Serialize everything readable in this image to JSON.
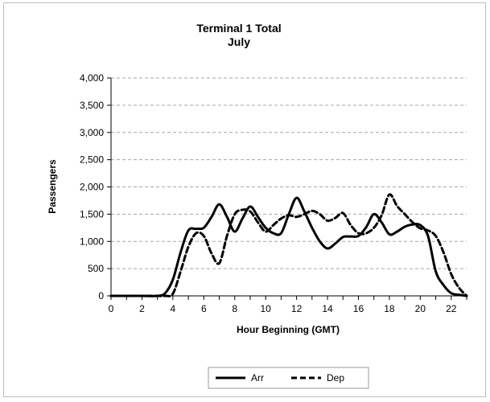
{
  "chart_data": {
    "type": "line",
    "title": "Terminal 1 Total",
    "subtitle": "July",
    "xlabel": "Hour Beginning (GMT)",
    "ylabel": "Passengers",
    "xlim": [
      0,
      23
    ],
    "ylim": [
      0,
      4000
    ],
    "y_ticks": [
      0,
      500,
      1000,
      1500,
      2000,
      2500,
      3000,
      3500,
      4000
    ],
    "y_tick_labels": [
      "0",
      "500",
      "1,000",
      "1,500",
      "2,000",
      "2,500",
      "3,000",
      "3,500",
      "4,000"
    ],
    "x_ticks": [
      0,
      2,
      4,
      6,
      8,
      10,
      12,
      14,
      16,
      18,
      20,
      22
    ],
    "x_tick_labels": [
      "0",
      "2",
      "4",
      "6",
      "8",
      "10",
      "12",
      "14",
      "16",
      "18",
      "20",
      "22"
    ],
    "grid": "horizontal dashed",
    "legend_position": "bottom",
    "x": [
      0,
      1,
      2,
      3,
      3.5,
      4,
      4.5,
      5,
      5.5,
      6,
      6.5,
      7,
      7.5,
      8,
      8.5,
      9,
      9.5,
      10,
      10.5,
      11,
      11.5,
      12,
      12.5,
      13,
      13.5,
      14,
      14.5,
      15,
      15.5,
      16,
      16.5,
      17,
      17.5,
      18,
      18.5,
      19,
      19.5,
      20,
      20.5,
      21,
      21.5,
      22,
      22.5,
      23
    ],
    "series": [
      {
        "name": "Arr",
        "style": "solid",
        "color": "#000000",
        "values": [
          0,
          0,
          0,
          0,
          50,
          300,
          800,
          1200,
          1230,
          1250,
          1450,
          1680,
          1450,
          1180,
          1420,
          1640,
          1450,
          1250,
          1150,
          1150,
          1500,
          1800,
          1550,
          1250,
          1000,
          870,
          960,
          1080,
          1090,
          1100,
          1260,
          1500,
          1350,
          1130,
          1180,
          1270,
          1310,
          1300,
          1100,
          450,
          200,
          50,
          20,
          0
        ]
      },
      {
        "name": "Dep",
        "style": "dashed",
        "color": "#000000",
        "values": [
          0,
          0,
          0,
          0,
          0,
          40,
          450,
          900,
          1150,
          1100,
          780,
          600,
          1100,
          1500,
          1580,
          1550,
          1350,
          1180,
          1300,
          1420,
          1480,
          1450,
          1500,
          1560,
          1500,
          1380,
          1430,
          1520,
          1300,
          1150,
          1150,
          1250,
          1480,
          1860,
          1650,
          1500,
          1350,
          1240,
          1200,
          1100,
          800,
          400,
          150,
          0
        ]
      }
    ]
  }
}
